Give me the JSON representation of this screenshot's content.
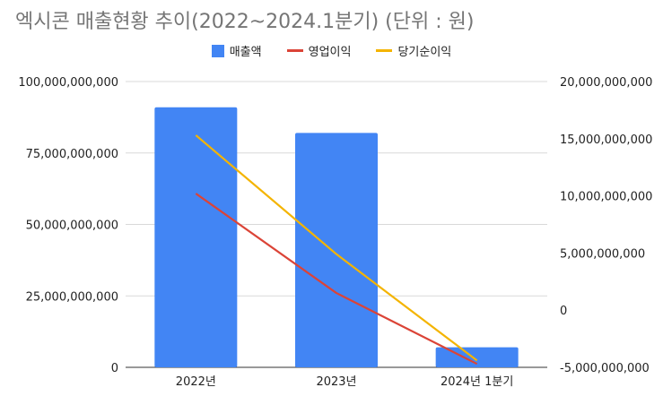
{
  "title": "엑시콘 매출현황 추이(2022~2024.1분기) (단위 : 원)",
  "colors": {
    "revenue": "#4285f4",
    "operating": "#db4437",
    "net": "#f4b400",
    "grid": "#d9d9d9",
    "axis_text": "#222222"
  },
  "legend": [
    "매출액",
    "영업이익",
    "당기순이익"
  ],
  "chart_data": {
    "type": "bar",
    "categories": [
      "2022년",
      "2023년",
      "2024년 1분기"
    ],
    "series": [
      {
        "name": "매출액",
        "type": "bar",
        "axis": "left",
        "values": [
          91000000000,
          82000000000,
          7000000000
        ]
      },
      {
        "name": "영업이익",
        "type": "line",
        "axis": "right",
        "values": [
          10200000000,
          1500000000,
          -4700000000
        ]
      },
      {
        "name": "당기순이익",
        "type": "line",
        "axis": "right",
        "values": [
          15300000000,
          4900000000,
          -4400000000
        ]
      }
    ],
    "left_axis": {
      "ylim": [
        0,
        100000000000
      ],
      "ticks": [
        0,
        25000000000,
        50000000000,
        75000000000,
        100000000000
      ],
      "tick_labels": [
        "0",
        "25,000,000,000",
        "50,000,000,000",
        "75,000,000,000",
        "100,000,000,000"
      ]
    },
    "right_axis": {
      "ylim": [
        -5000000000,
        20000000000
      ],
      "ticks": [
        -5000000000,
        0,
        5000000000,
        10000000000,
        15000000000,
        20000000000
      ],
      "tick_labels": [
        "-5,000,000,000",
        "0",
        "5,000,000,000",
        "10,000,000,000",
        "15,000,000,000",
        "20,000,000,000"
      ]
    },
    "grid": true,
    "legend_position": "top"
  }
}
